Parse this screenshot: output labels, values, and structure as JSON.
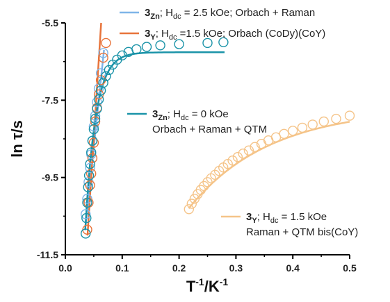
{
  "chart_data": {
    "type": "scatter",
    "xlabel": {
      "main": "T",
      "sup1": "-1",
      "mid": "/K",
      "sup2": "-1"
    },
    "ylabel": "ln τ/s",
    "xlim": [
      0,
      0.5
    ],
    "ylim": [
      -11.5,
      -5.5
    ],
    "xticks": [
      "0.0",
      "0.1",
      "0.2",
      "0.3",
      "0.4",
      "0.5"
    ],
    "yticks": [
      "-5.5",
      "-7.5",
      "-9.5",
      "-11.5"
    ],
    "grid": false,
    "legend_placement": "top-right",
    "series": [
      {
        "id": "s1",
        "legend": {
          "bold": "3",
          "sub": "Zn",
          "text": "; H",
          "sub2": "dc",
          "text2": " = 2.5 kOe; Orbach + Raman"
        },
        "color": "#7fb5e8",
        "points": [
          [
            0.0357,
            -10.45
          ],
          [
            0.0385,
            -10.05
          ],
          [
            0.0408,
            -9.62
          ],
          [
            0.0435,
            -9.25
          ],
          [
            0.0455,
            -8.9
          ],
          [
            0.0476,
            -8.55
          ],
          [
            0.05,
            -8.18
          ],
          [
            0.0526,
            -7.9
          ],
          [
            0.0556,
            -7.55
          ],
          [
            0.0588,
            -7.2
          ],
          [
            0.0625,
            -6.8
          ],
          [
            0.0667,
            -6.28
          ]
        ],
        "fit": [
          [
            0.036,
            -10.7
          ],
          [
            0.068,
            -6.2
          ]
        ]
      },
      {
        "id": "s2",
        "legend": {
          "bold": "3",
          "sub": "Y",
          "text": "; H",
          "sub2": "dc",
          "text2": " =1.5 kOe; Orbach (CoDy)(CoY)"
        },
        "color": "#e8743b",
        "points": [
          [
            0.0385,
            -10.85
          ],
          [
            0.0408,
            -10.15
          ],
          [
            0.0435,
            -9.7
          ],
          [
            0.0455,
            -9.4
          ],
          [
            0.0476,
            -9.0
          ],
          [
            0.05,
            -8.6
          ],
          [
            0.0526,
            -8.05
          ],
          [
            0.0556,
            -7.7
          ],
          [
            0.0588,
            -7.35
          ],
          [
            0.0625,
            -6.98
          ],
          [
            0.0667,
            -6.4
          ],
          [
            0.0714,
            -6.02
          ]
        ],
        "fit": [
          [
            0.039,
            -11.0
          ],
          [
            0.063,
            -5.5
          ]
        ]
      },
      {
        "id": "s3",
        "legend": {
          "bold": "3",
          "sub": "Zn",
          "text": "; H",
          "sub2": "dc",
          "text2": " = 0 kOe",
          "line2": "Orbach + Raman + QTM"
        },
        "color": "#1a93a8",
        "points": [
          [
            0.0357,
            -10.95
          ],
          [
            0.037,
            -10.55
          ],
          [
            0.0385,
            -10.15
          ],
          [
            0.04,
            -9.75
          ],
          [
            0.0417,
            -9.45
          ],
          [
            0.0435,
            -9.15
          ],
          [
            0.0455,
            -8.85
          ],
          [
            0.0476,
            -8.55
          ],
          [
            0.05,
            -8.25
          ],
          [
            0.0526,
            -7.98
          ],
          [
            0.0556,
            -7.72
          ],
          [
            0.0588,
            -7.48
          ],
          [
            0.0625,
            -7.25
          ],
          [
            0.0667,
            -7.05
          ],
          [
            0.0714,
            -6.88
          ],
          [
            0.0769,
            -6.72
          ],
          [
            0.0833,
            -6.58
          ],
          [
            0.0909,
            -6.45
          ],
          [
            0.1,
            -6.34
          ],
          [
            0.111,
            -6.25
          ],
          [
            0.125,
            -6.18
          ],
          [
            0.143,
            -6.12
          ],
          [
            0.167,
            -6.08
          ],
          [
            0.2,
            -6.05
          ],
          [
            0.25,
            -6.02
          ],
          [
            0.278,
            -6.0
          ]
        ],
        "fit_params": {
          "plateau": -6.26,
          "decay": 55.0,
          "start_x": 0.035,
          "end_x": 0.28
        }
      },
      {
        "id": "s4",
        "legend": {
          "bold": "3",
          "sub": "Y",
          "text": "; H",
          "sub2": "dc",
          "text2": " = 1.5 kOe",
          "line2": "Raman + QTM bis(CoY)"
        },
        "color": "#f5c489",
        "points": [
          [
            0.2174,
            -10.32
          ],
          [
            0.2222,
            -10.18
          ],
          [
            0.2273,
            -10.05
          ],
          [
            0.2326,
            -9.93
          ],
          [
            0.2381,
            -9.82
          ],
          [
            0.2439,
            -9.72
          ],
          [
            0.25,
            -9.62
          ],
          [
            0.2564,
            -9.52
          ],
          [
            0.2632,
            -9.43
          ],
          [
            0.2703,
            -9.33
          ],
          [
            0.2778,
            -9.24
          ],
          [
            0.2857,
            -9.15
          ],
          [
            0.2941,
            -9.06
          ],
          [
            0.303,
            -8.97
          ],
          [
            0.3125,
            -8.88
          ],
          [
            0.3226,
            -8.8
          ],
          [
            0.3333,
            -8.71
          ],
          [
            0.3448,
            -8.63
          ],
          [
            0.3571,
            -8.54
          ],
          [
            0.3704,
            -8.46
          ],
          [
            0.3846,
            -8.37
          ],
          [
            0.4,
            -8.29
          ],
          [
            0.4167,
            -8.21
          ],
          [
            0.4348,
            -8.13
          ],
          [
            0.4545,
            -8.05
          ],
          [
            0.4762,
            -7.98
          ],
          [
            0.5,
            -7.9
          ]
        ],
        "fit_params": {
          "plateau": -7.7,
          "amp": 2.6,
          "decay": 7.0,
          "start_x": 0.217,
          "end_x": 0.5
        }
      }
    ]
  }
}
